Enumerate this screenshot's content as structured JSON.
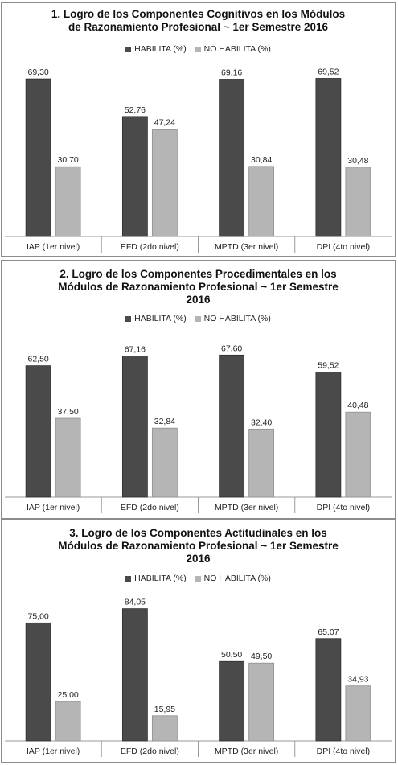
{
  "colors": {
    "habilita": "#4a4a4a",
    "no_habilita": "#b5b5b5",
    "axis": "#9a9a9a"
  },
  "chart_data": [
    {
      "type": "bar",
      "title_line1": "1. Logro de los Componentes Cognitivos en los Módulos",
      "title_line2": "de Razonamiento Profesional ~ 1er Semestre 2016",
      "title_line3": "",
      "categories": [
        "IAP (1er nivel)",
        "EFD (2do nivel)",
        "MPTD (3er nivel)",
        "DPI (4to nivel)"
      ],
      "series": [
        {
          "name": "HABILITA (%)",
          "values": [
            69.3,
            52.76,
            69.16,
            69.52
          ],
          "labels": [
            "69,30",
            "52,76",
            "69,16",
            "69,52"
          ]
        },
        {
          "name": "NO HABILITA (%)",
          "values": [
            30.7,
            47.24,
            30.84,
            30.48
          ],
          "labels": [
            "30,70",
            "47,24",
            "30,84",
            "30,48"
          ]
        }
      ],
      "ylim": [
        0,
        75
      ],
      "legend": "top"
    },
    {
      "type": "bar",
      "title_line1": "2. Logro de los  Componentes Procedimentales en los",
      "title_line2": "Módulos de Razonamiento Profesional ~ 1er Semestre",
      "title_line3": "2016",
      "categories": [
        "IAP (1er nivel)",
        "EFD (2do nivel)",
        "MPTD (3er nivel)",
        "DPI (4to nivel)"
      ],
      "series": [
        {
          "name": "HABILITA (%)",
          "values": [
            62.5,
            67.16,
            67.6,
            59.52
          ],
          "labels": [
            "62,50",
            "67,16",
            "67,60",
            "59,52"
          ]
        },
        {
          "name": "NO HABILITA (%)",
          "values": [
            37.5,
            32.84,
            32.4,
            40.48
          ],
          "labels": [
            "37,50",
            "32,84",
            "32,40",
            "40,48"
          ]
        }
      ],
      "ylim": [
        0,
        75
      ],
      "legend": "top"
    },
    {
      "type": "bar",
      "title_line1": "3. Logro de los Componentes Actitudinales  en los",
      "title_line2": "Módulos de Razonamiento Profesional ~ 1er Semestre",
      "title_line3": "2016",
      "categories": [
        "IAP (1er nivel)",
        "EFD (2do nivel)",
        "MPTD (3er nivel)",
        "DPI (4to nivel)"
      ],
      "series": [
        {
          "name": "HABILITA (%)",
          "values": [
            75.0,
            84.05,
            50.5,
            65.07
          ],
          "labels": [
            "75,00",
            "84,05",
            "50,50",
            "65,07"
          ]
        },
        {
          "name": "NO HABILITA (%)",
          "values": [
            25.0,
            15.95,
            49.5,
            34.93
          ],
          "labels": [
            "25,00",
            "15,95",
            "49,50",
            "34,93"
          ]
        }
      ],
      "ylim": [
        0,
        90
      ],
      "legend": "top"
    }
  ]
}
